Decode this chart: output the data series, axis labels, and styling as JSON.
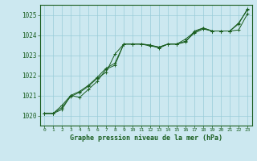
{
  "title": "Graphe pression niveau de la mer (hPa)",
  "background_color": "#cce8f0",
  "grid_color": "#99ccd9",
  "line_color": "#1a5e20",
  "spine_color": "#1a5e20",
  "xlim": [
    -0.5,
    23.5
  ],
  "ylim": [
    1019.5,
    1025.5
  ],
  "yticks": [
    1020,
    1021,
    1022,
    1023,
    1024,
    1025
  ],
  "xticks": [
    0,
    1,
    2,
    3,
    4,
    5,
    6,
    7,
    8,
    9,
    10,
    11,
    12,
    13,
    14,
    15,
    16,
    17,
    18,
    19,
    20,
    21,
    22,
    23
  ],
  "series": [
    [
      1020.1,
      1020.1,
      1020.3,
      1021.0,
      1020.9,
      1021.3,
      1021.7,
      1022.3,
      1022.5,
      1023.55,
      1023.55,
      1023.55,
      1023.5,
      1023.35,
      1023.55,
      1023.55,
      1023.7,
      1024.1,
      1024.3,
      1024.2,
      1024.2,
      1024.2,
      1024.6,
      1025.25
    ],
    [
      1020.1,
      1020.1,
      1020.4,
      1020.95,
      1021.15,
      1021.45,
      1021.85,
      1022.15,
      1023.05,
      1023.55,
      1023.55,
      1023.55,
      1023.45,
      1023.4,
      1023.55,
      1023.55,
      1023.8,
      1024.15,
      1024.35,
      1024.2,
      1024.2,
      1024.2,
      1024.25,
      1025.05
    ],
    [
      1020.1,
      1020.1,
      1020.5,
      1021.0,
      1021.2,
      1021.5,
      1021.9,
      1022.35,
      1022.6,
      1023.55,
      1023.55,
      1023.55,
      1023.5,
      1023.4,
      1023.55,
      1023.55,
      1023.65,
      1024.2,
      1024.35,
      1024.2,
      1024.2,
      1024.2,
      1024.55,
      1025.3
    ]
  ]
}
